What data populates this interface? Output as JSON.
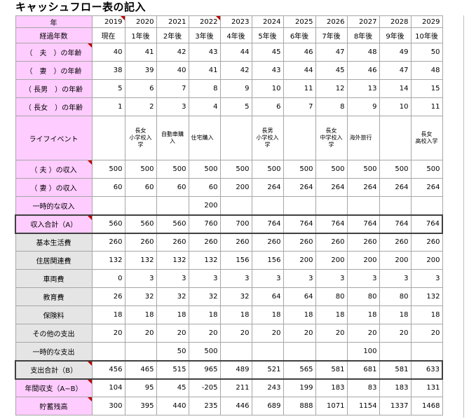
{
  "title": "キャッシュフロー表の記入",
  "colors": {
    "label_pink": "#ffccff",
    "label_gray": "#e5e5e5",
    "comment_mark": "#c00000"
  },
  "table": {
    "header_label": "年",
    "years": [
      "2019",
      "2020",
      "2021",
      "2022",
      "2023",
      "2024",
      "2025",
      "2026",
      "2027",
      "2028",
      "2029"
    ],
    "elapsed_label": "経過年数",
    "elapsed": [
      "現在",
      "1年後",
      "2年後",
      "3年後",
      "4年後",
      "5年後",
      "6年後",
      "7年後",
      "8年後",
      "9年後",
      "10年後"
    ],
    "ages": [
      {
        "label": "（　夫　）の年齢",
        "values": [
          "40",
          "41",
          "42",
          "43",
          "44",
          "45",
          "46",
          "47",
          "48",
          "49",
          "50"
        ]
      },
      {
        "label": "（　妻　）の年齢",
        "values": [
          "38",
          "39",
          "40",
          "41",
          "42",
          "43",
          "44",
          "45",
          "46",
          "47",
          "48"
        ]
      },
      {
        "label": "（ 長男　）の年齢",
        "values": [
          "5",
          "6",
          "7",
          "8",
          "9",
          "10",
          "11",
          "12",
          "13",
          "14",
          "15"
        ]
      },
      {
        "label": "（ 長女　）の年齢",
        "values": [
          "1",
          "2",
          "3",
          "4",
          "5",
          "6",
          "7",
          "8",
          "9",
          "10",
          "11"
        ]
      }
    ],
    "life_event_label": "ライフイベント",
    "life_events": [
      {
        "text": "",
        "align": "center"
      },
      {
        "text": "長女\n小学校入\n学",
        "align": "center"
      },
      {
        "text": "自動車購\n入",
        "align": "center"
      },
      {
        "text": "住宅購入",
        "align": "left"
      },
      {
        "text": "",
        "align": "center"
      },
      {
        "text": "長男\n小学校入\n学",
        "align": "center"
      },
      {
        "text": "",
        "align": "center"
      },
      {
        "text": "長女\n中学校入\n学",
        "align": "center"
      },
      {
        "text": "海外旅行",
        "align": "left"
      },
      {
        "text": "",
        "align": "center"
      },
      {
        "text": "長女\n高校入学",
        "align": "center"
      }
    ],
    "income": [
      {
        "label": "（ 夫 ）の収入",
        "values": [
          "500",
          "500",
          "500",
          "500",
          "500",
          "500",
          "500",
          "500",
          "500",
          "500",
          "500"
        ]
      },
      {
        "label": "（ 妻 ）の収入",
        "values": [
          "60",
          "60",
          "60",
          "60",
          "200",
          "264",
          "264",
          "264",
          "264",
          "264",
          "264"
        ]
      },
      {
        "label": "一時的な収入",
        "values": [
          "",
          "",
          "",
          "200",
          "",
          "",
          "",
          "",
          "",
          "",
          ""
        ]
      }
    ],
    "income_total": {
      "label": "収入合計（A）",
      "values": [
        "560",
        "560",
        "560",
        "760",
        "700",
        "764",
        "764",
        "764",
        "764",
        "764",
        "764"
      ]
    },
    "expenses": [
      {
        "label": "基本生活費",
        "values": [
          "260",
          "260",
          "260",
          "260",
          "260",
          "260",
          "260",
          "260",
          "260",
          "260",
          "260"
        ]
      },
      {
        "label": "住居関連費",
        "values": [
          "132",
          "132",
          "132",
          "132",
          "156",
          "156",
          "200",
          "200",
          "200",
          "200",
          "200"
        ]
      },
      {
        "label": "車両費",
        "values": [
          "0",
          "3",
          "3",
          "3",
          "3",
          "3",
          "3",
          "3",
          "3",
          "3",
          "3"
        ]
      },
      {
        "label": "教育費",
        "values": [
          "26",
          "32",
          "32",
          "32",
          "32",
          "64",
          "64",
          "80",
          "80",
          "80",
          "132"
        ]
      },
      {
        "label": "保険料",
        "values": [
          "18",
          "18",
          "18",
          "18",
          "18",
          "18",
          "18",
          "18",
          "18",
          "18",
          "18"
        ]
      },
      {
        "label": "その他の支出",
        "values": [
          "20",
          "20",
          "20",
          "20",
          "20",
          "20",
          "20",
          "20",
          "20",
          "20",
          "20"
        ]
      },
      {
        "label": "一時的な支出",
        "values": [
          "",
          "",
          "50",
          "500",
          "",
          "",
          "",
          "",
          "100",
          "",
          ""
        ]
      }
    ],
    "expense_total": {
      "label": "支出合計（B）",
      "values": [
        "456",
        "465",
        "515",
        "965",
        "489",
        "521",
        "565",
        "581",
        "681",
        "581",
        "633"
      ]
    },
    "net": {
      "label": "年間収支（A−B）",
      "values": [
        "104",
        "95",
        "45",
        "-205",
        "211",
        "243",
        "199",
        "183",
        "83",
        "183",
        "131"
      ]
    },
    "savings": {
      "label": "貯蓄残高",
      "values": [
        "300",
        "395",
        "440",
        "235",
        "446",
        "689",
        "888",
        "1071",
        "1154",
        "1337",
        "1468"
      ]
    }
  }
}
